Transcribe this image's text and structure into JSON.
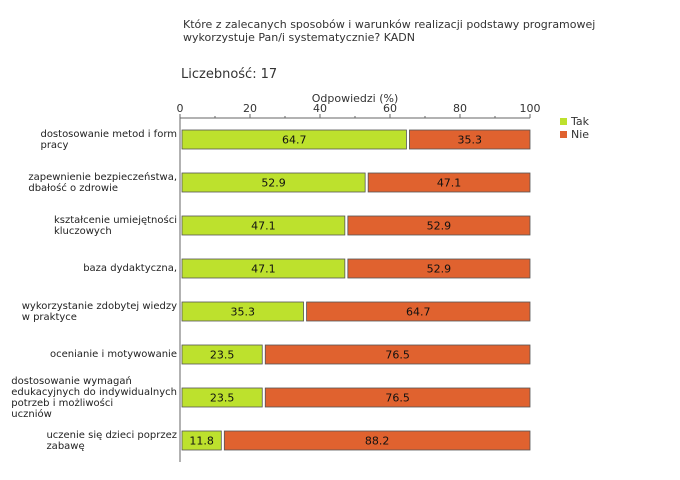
{
  "title": "Które z zalecanych sposobów i warunków realizacji podstawy programowej wykorzystuje Pan/i systematycznie?  KADN",
  "count": {
    "label": "Liczebność:",
    "value": "17"
  },
  "chart_data": {
    "type": "bar",
    "orientation": "horizontal",
    "stacked": true,
    "title": "Które z zalecanych sposobów i warunków realizacji podstawy programowej wykorzystuje Pan/i systematycznie?  KADN",
    "xlabel": "Odpowiedzi (%)",
    "ylabel": "",
    "xlim": [
      0,
      100
    ],
    "xticks": [
      0,
      20,
      40,
      60,
      80,
      100
    ],
    "legend_position": "top-right",
    "categories": [
      "dostosowanie metod i form pracy",
      "zapewnienie bezpieczeństwa, dbałość o zdrowie",
      "kształcenie umiejętności kluczowych",
      "baza dydaktyczna,",
      "wykorzystanie zdobytej wiedzy w praktyce",
      "ocenianie i motywowanie",
      "dostosowanie wymagań edukacyjnych do indywidualnych potrzeb i możliwości uczniów",
      "uczenie się dzieci poprzez zabawę"
    ],
    "series": [
      {
        "name": "Tak",
        "color": "#bde12d",
        "values": [
          64.7,
          52.9,
          47.1,
          47.1,
          35.3,
          23.5,
          23.5,
          11.8
        ]
      },
      {
        "name": "Nie",
        "color": "#e0622f",
        "values": [
          35.3,
          47.1,
          52.9,
          52.9,
          64.7,
          76.5,
          76.5,
          88.2
        ]
      }
    ],
    "value_labels": [
      [
        "64.7",
        "35.3"
      ],
      [
        "52.9",
        "47.1"
      ],
      [
        "47.1",
        "52.9"
      ],
      [
        "47.1",
        "52.9"
      ],
      [
        "35.3",
        "64.7"
      ],
      [
        "23.5",
        "76.5"
      ],
      [
        "23.5",
        "76.5"
      ],
      [
        "11.8",
        "88.2"
      ]
    ],
    "category_label_lines": [
      [
        "dostosowanie metod i form",
        "pracy"
      ],
      [
        "zapewnienie bezpieczeństwa,",
        "dbałość o zdrowie"
      ],
      [
        "kształcenie umiejętności",
        "kluczowych"
      ],
      [
        "baza dydaktyczna,"
      ],
      [
        "wykorzystanie zdobytej wiedzy",
        "w praktyce"
      ],
      [
        "ocenianie i motywowanie"
      ],
      [
        "dostosowanie wymagań",
        "edukacyjnych do indywidualnych",
        "potrzeb i możliwości",
        "uczniów"
      ],
      [
        "uczenie się dzieci poprzez",
        "zabawę"
      ]
    ]
  }
}
